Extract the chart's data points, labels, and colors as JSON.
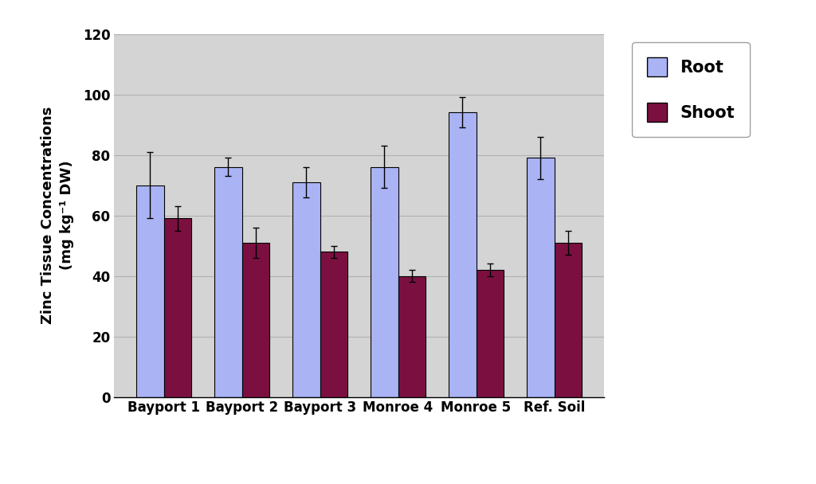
{
  "categories": [
    "Bayport 1",
    "Bayport 2",
    "Bayport 3",
    "Monroe 4",
    "Monroe 5",
    "Ref. Soil"
  ],
  "root_values": [
    70,
    76,
    71,
    76,
    94,
    79
  ],
  "shoot_values": [
    59,
    51,
    48,
    40,
    42,
    51
  ],
  "root_errors": [
    11,
    3,
    5,
    7,
    5,
    7
  ],
  "shoot_errors": [
    4,
    5,
    2,
    2,
    2,
    4
  ],
  "root_color": "#aab4f5",
  "shoot_color": "#7b1040",
  "ylabel_line1": "Zinc Tissue Concentrations",
  "ylabel_line2": "(mg kg⁻¹ DW)",
  "ylim": [
    0,
    120
  ],
  "yticks": [
    0,
    20,
    40,
    60,
    80,
    100,
    120
  ],
  "legend_root": "Root",
  "legend_shoot": "Shoot",
  "plot_bg_color": "#d4d4d4",
  "fig_bg_color": "#ffffff",
  "bar_width": 0.35,
  "grid_color": "#b0b0b0"
}
